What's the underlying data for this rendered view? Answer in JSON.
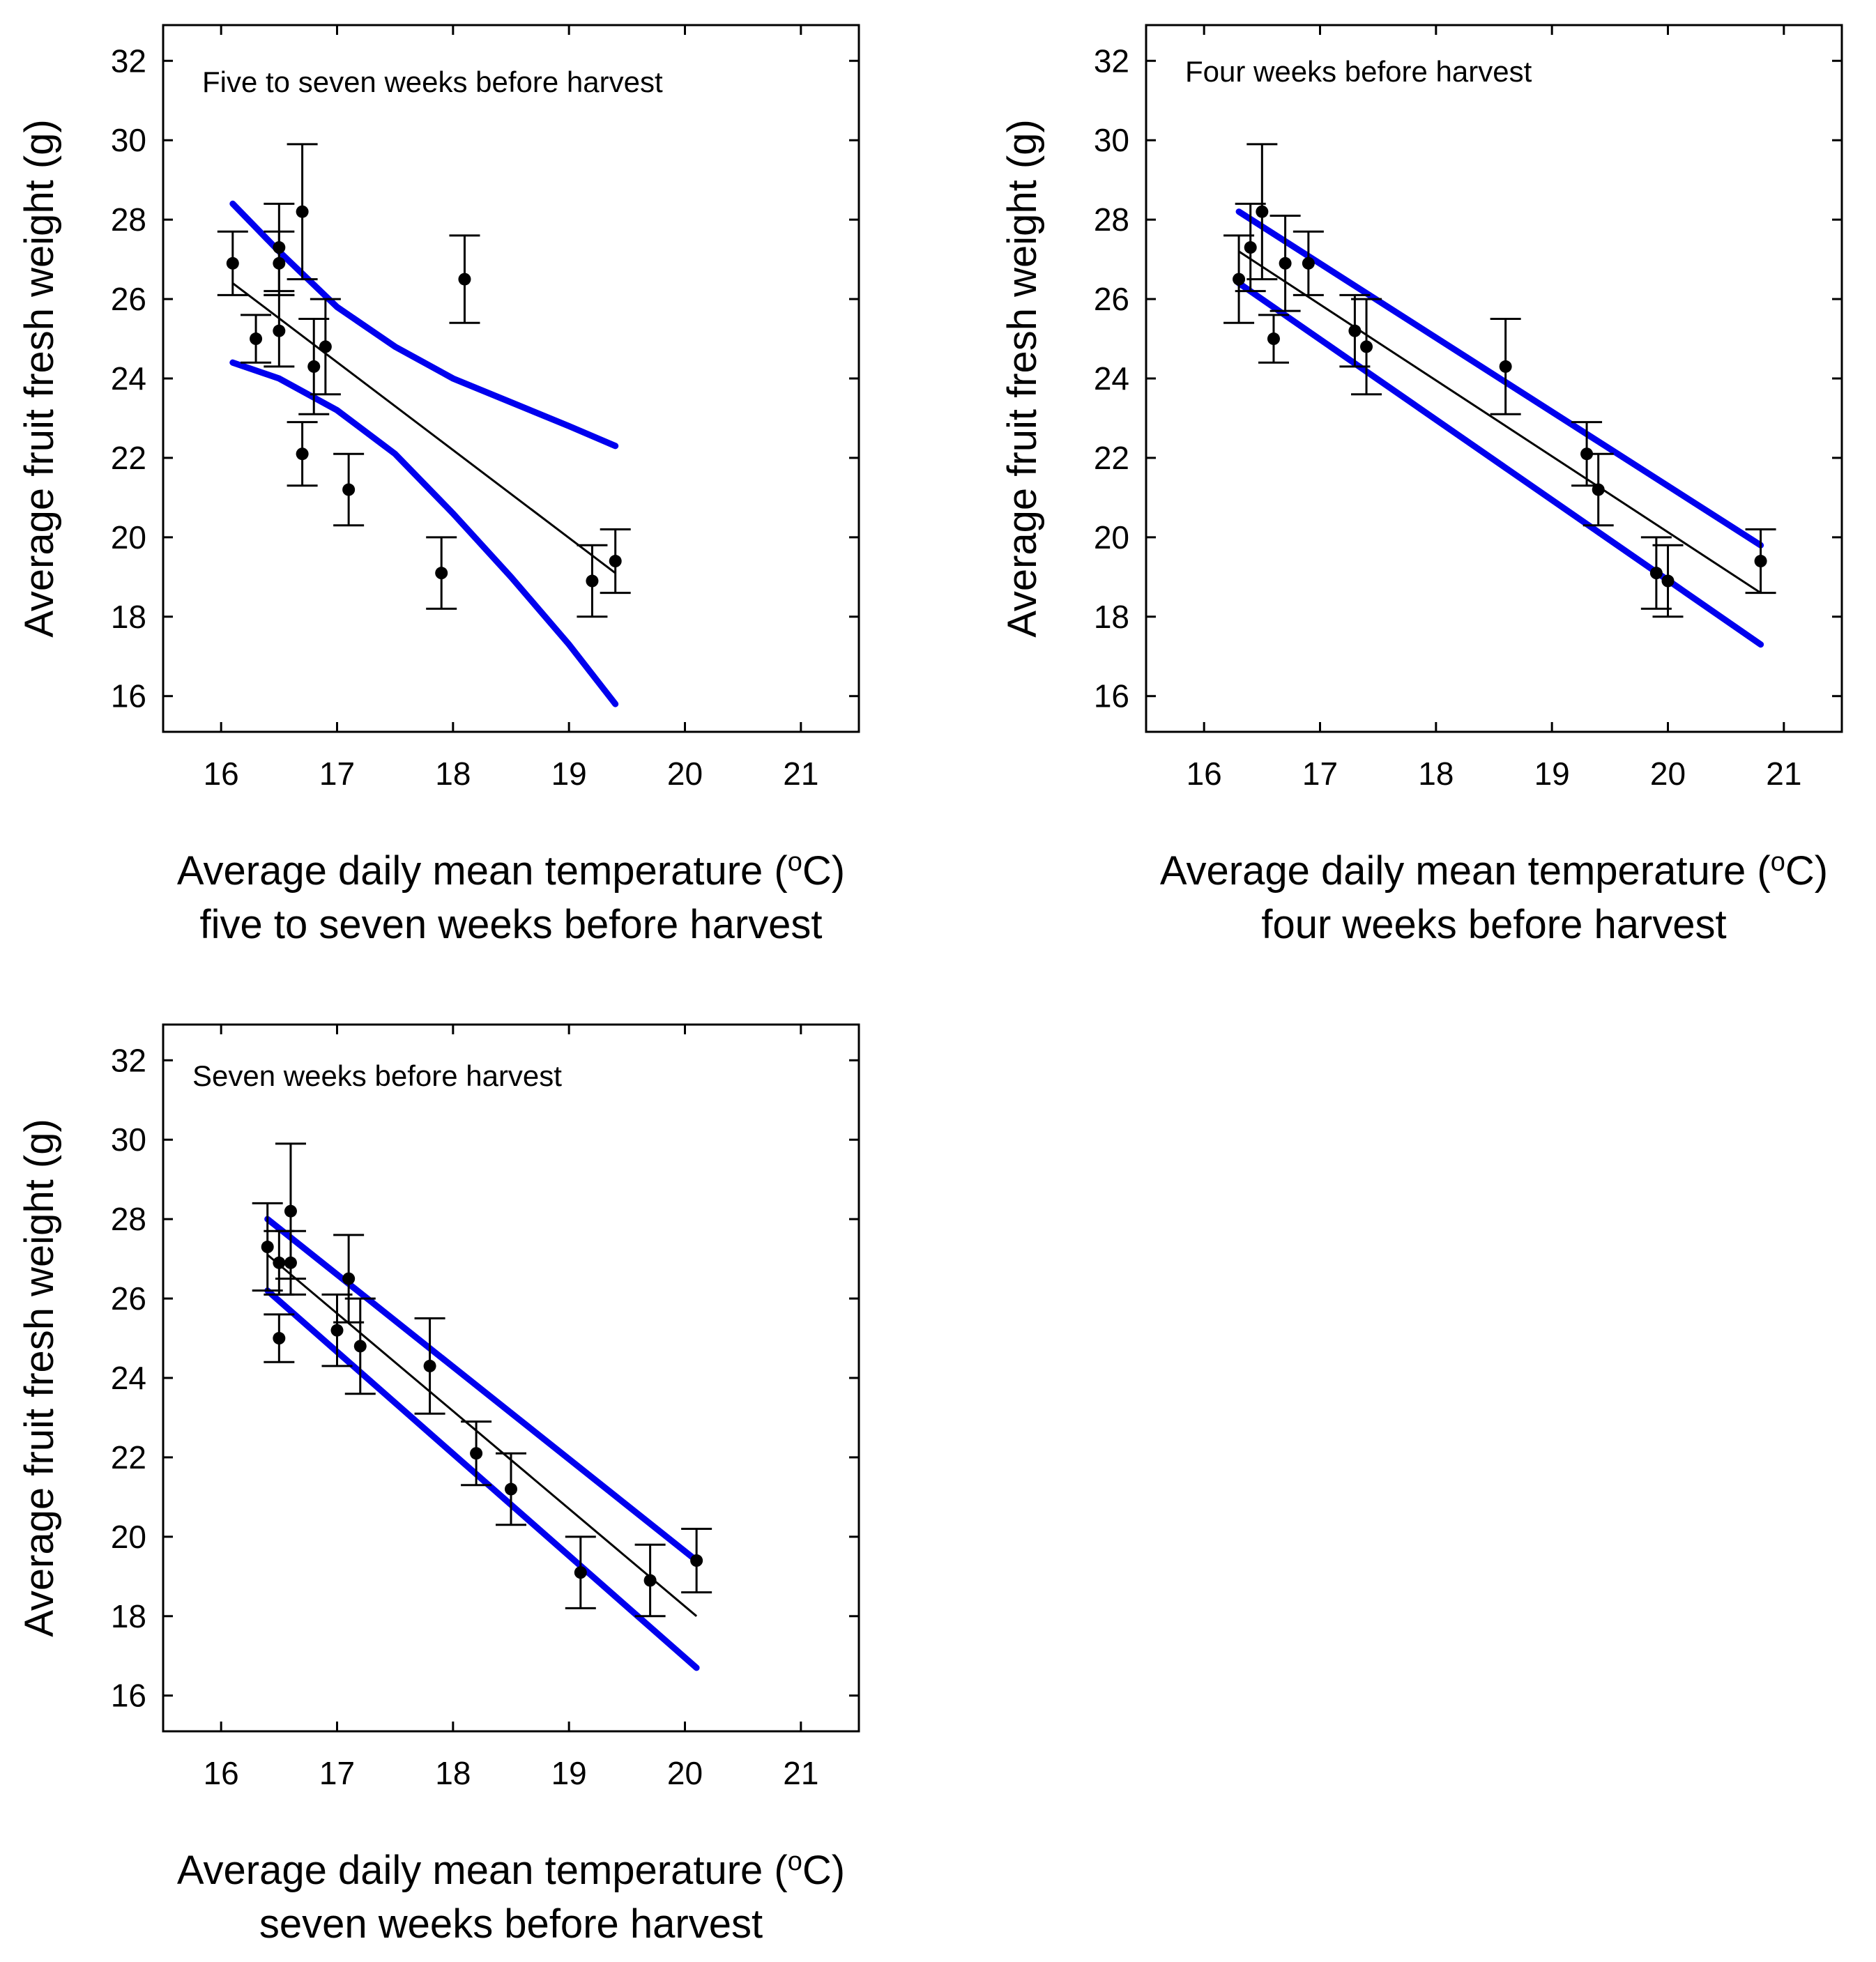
{
  "chart_data": [
    {
      "type": "scatter",
      "panel_label": "Five to seven weeks before harvest",
      "xlabel_line1": "Average daily mean temperature (",
      "xlabel_degree": "o",
      "xlabel_unit": "C)",
      "xlabel_line2": "five to seven weeks before harvest",
      "ylabel": "Average fruit fresh weight (g)",
      "xlim": [
        15.5,
        21.5
      ],
      "ylim": [
        15.1,
        32.9
      ],
      "xticks": [
        16,
        17,
        18,
        19,
        20,
        21
      ],
      "yticks": [
        16,
        18,
        20,
        22,
        24,
        26,
        28,
        30,
        32
      ],
      "points": [
        {
          "x": 16.1,
          "y": 26.9,
          "err": 0.8
        },
        {
          "x": 16.3,
          "y": 25.0,
          "err": 0.6
        },
        {
          "x": 16.5,
          "y": 27.3,
          "err": 1.1
        },
        {
          "x": 16.5,
          "y": 26.9,
          "err": 0.8
        },
        {
          "x": 16.5,
          "y": 25.2,
          "err": 0.9
        },
        {
          "x": 16.7,
          "y": 28.2,
          "err": 1.7
        },
        {
          "x": 16.7,
          "y": 22.1,
          "err": 0.8
        },
        {
          "x": 16.8,
          "y": 24.3,
          "err": 1.2
        },
        {
          "x": 16.9,
          "y": 24.8,
          "err": 1.2
        },
        {
          "x": 17.1,
          "y": 21.2,
          "err": 0.9
        },
        {
          "x": 17.9,
          "y": 19.1,
          "err": 0.9
        },
        {
          "x": 18.1,
          "y": 26.5,
          "err": 1.1
        },
        {
          "x": 19.2,
          "y": 18.9,
          "err": 0.9
        },
        {
          "x": 19.4,
          "y": 19.4,
          "err": 0.8
        }
      ],
      "regression": {
        "x": [
          16.1,
          19.4
        ],
        "y": [
          26.4,
          19.1
        ]
      },
      "ci_upper": [
        [
          16.1,
          28.4
        ],
        [
          16.5,
          27.2
        ],
        [
          17.0,
          25.8
        ],
        [
          17.5,
          24.8
        ],
        [
          18.0,
          24.0
        ],
        [
          18.5,
          23.4
        ],
        [
          19.0,
          22.8
        ],
        [
          19.4,
          22.3
        ]
      ],
      "ci_lower": [
        [
          16.1,
          24.4
        ],
        [
          16.5,
          24.0
        ],
        [
          17.0,
          23.2
        ],
        [
          17.5,
          22.1
        ],
        [
          18.0,
          20.6
        ],
        [
          18.5,
          19.0
        ],
        [
          19.0,
          17.3
        ],
        [
          19.4,
          15.8
        ]
      ]
    },
    {
      "type": "scatter",
      "panel_label": "Four weeks before harvest",
      "xlabel_line1": "Average daily mean temperature (",
      "xlabel_degree": "o",
      "xlabel_unit": "C)",
      "xlabel_line2": "four weeks before harvest",
      "ylabel": "Average fruit fresh weight (g)",
      "xlim": [
        15.5,
        21.5
      ],
      "ylim": [
        15.1,
        32.9
      ],
      "xticks": [
        16,
        17,
        18,
        19,
        20,
        21
      ],
      "yticks": [
        16,
        18,
        20,
        22,
        24,
        26,
        28,
        30,
        32
      ],
      "points": [
        {
          "x": 16.3,
          "y": 26.5,
          "err": 1.1
        },
        {
          "x": 16.4,
          "y": 27.3,
          "err": 1.1
        },
        {
          "x": 16.5,
          "y": 28.2,
          "err": 1.7
        },
        {
          "x": 16.6,
          "y": 25.0,
          "err": 0.6
        },
        {
          "x": 16.7,
          "y": 26.9,
          "err": 1.2
        },
        {
          "x": 16.9,
          "y": 26.9,
          "err": 0.8
        },
        {
          "x": 17.3,
          "y": 25.2,
          "err": 0.9
        },
        {
          "x": 17.4,
          "y": 24.8,
          "err": 1.2
        },
        {
          "x": 18.6,
          "y": 24.3,
          "err": 1.2
        },
        {
          "x": 19.3,
          "y": 22.1,
          "err": 0.8
        },
        {
          "x": 19.4,
          "y": 21.2,
          "err": 0.9
        },
        {
          "x": 19.9,
          "y": 19.1,
          "err": 0.9
        },
        {
          "x": 20.0,
          "y": 18.9,
          "err": 0.9
        },
        {
          "x": 20.8,
          "y": 19.4,
          "err": 0.8
        }
      ],
      "regression": {
        "x": [
          16.3,
          20.8
        ],
        "y": [
          27.2,
          18.6
        ]
      },
      "ci_upper": [
        [
          16.3,
          28.2
        ],
        [
          20.8,
          19.8
        ]
      ],
      "ci_lower": [
        [
          16.3,
          26.4
        ],
        [
          20.8,
          17.3
        ]
      ]
    },
    {
      "type": "scatter",
      "panel_label": "Seven weeks before harvest",
      "xlabel_line1": "Average daily mean temperature (",
      "xlabel_degree": "o",
      "xlabel_unit": "C)",
      "xlabel_line2": "seven weeks before harvest",
      "ylabel": "Average fruit fresh weight (g)",
      "xlim": [
        15.5,
        21.5
      ],
      "ylim": [
        15.1,
        32.9
      ],
      "xticks": [
        16,
        17,
        18,
        19,
        20,
        21
      ],
      "yticks": [
        16,
        18,
        20,
        22,
        24,
        26,
        28,
        30,
        32
      ],
      "points": [
        {
          "x": 16.4,
          "y": 27.3,
          "err": 1.1
        },
        {
          "x": 16.5,
          "y": 26.9,
          "err": 0.8
        },
        {
          "x": 16.5,
          "y": 25.0,
          "err": 0.6
        },
        {
          "x": 16.6,
          "y": 28.2,
          "err": 1.7
        },
        {
          "x": 16.6,
          "y": 26.9,
          "err": 0.8
        },
        {
          "x": 17.0,
          "y": 25.2,
          "err": 0.9
        },
        {
          "x": 17.1,
          "y": 26.5,
          "err": 1.1
        },
        {
          "x": 17.2,
          "y": 24.8,
          "err": 1.2
        },
        {
          "x": 17.8,
          "y": 24.3,
          "err": 1.2
        },
        {
          "x": 18.2,
          "y": 22.1,
          "err": 0.8
        },
        {
          "x": 18.5,
          "y": 21.2,
          "err": 0.9
        },
        {
          "x": 19.1,
          "y": 19.1,
          "err": 0.9
        },
        {
          "x": 19.7,
          "y": 18.9,
          "err": 0.9
        },
        {
          "x": 20.1,
          "y": 19.4,
          "err": 0.8
        }
      ],
      "regression": {
        "x": [
          16.4,
          20.1
        ],
        "y": [
          27.1,
          18.0
        ]
      },
      "ci_upper": [
        [
          16.4,
          28.0
        ],
        [
          20.1,
          19.4
        ]
      ],
      "ci_lower": [
        [
          16.4,
          26.2
        ],
        [
          20.1,
          16.7
        ]
      ]
    }
  ]
}
